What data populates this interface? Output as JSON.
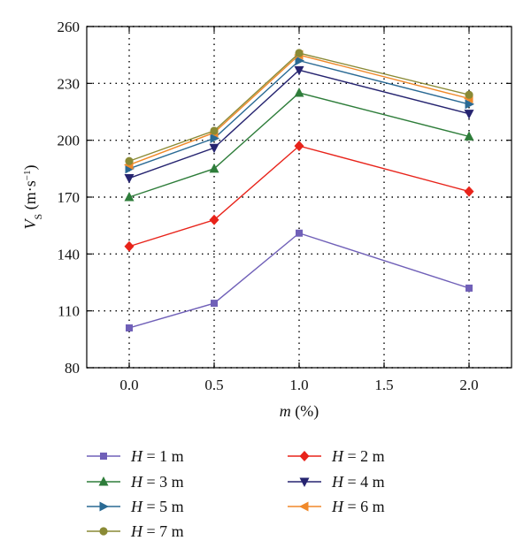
{
  "chart_data": {
    "type": "line",
    "xlabel": {
      "var": "m",
      "unit": " (%)"
    },
    "ylabel": {
      "var": "V",
      "sub": "S",
      "unit_pre": " (m·s",
      "sup": "−1",
      "unit_post": ")"
    },
    "xlim": [
      -0.25,
      2.25
    ],
    "ylim": [
      80,
      260
    ],
    "xticks": [
      0.0,
      0.5,
      1.0,
      1.5,
      2.0
    ],
    "xtick_labels": [
      "0.0",
      "0.5",
      "1.0",
      "1.5",
      "2.0"
    ],
    "yticks": [
      80,
      110,
      140,
      170,
      200,
      230,
      260
    ],
    "ytick_labels": [
      "80",
      "110",
      "140",
      "170",
      "200",
      "230",
      "260"
    ],
    "grid": "dotted",
    "legend_placement": "bottom",
    "x": [
      0.0,
      0.5,
      1.0,
      2.0
    ],
    "series": [
      {
        "name": "H = 1 m",
        "label_var": "H",
        "label_rest": " = 1 m",
        "color": "#7060b8",
        "marker": "square",
        "values": [
          101,
          114,
          151,
          122
        ]
      },
      {
        "name": "H = 2 m",
        "label_var": "H",
        "label_rest": " = 2 m",
        "color": "#e8231a",
        "marker": "diamond",
        "values": [
          144,
          158,
          197,
          173
        ]
      },
      {
        "name": "H = 3 m",
        "label_var": "H",
        "label_rest": " = 3 m",
        "color": "#2e7d3a",
        "marker": "triangle-up",
        "values": [
          170,
          185,
          225,
          202
        ]
      },
      {
        "name": "H = 4 m",
        "label_var": "H",
        "label_rest": " = 4 m",
        "color": "#262470",
        "marker": "triangle-down",
        "values": [
          180,
          196,
          237,
          214
        ]
      },
      {
        "name": "H = 5 m",
        "label_var": "H",
        "label_rest": " = 5 m",
        "color": "#2a6a94",
        "marker": "triangle-right",
        "values": [
          185,
          201,
          242,
          219
        ]
      },
      {
        "name": "H = 6 m",
        "label_var": "H",
        "label_rest": " = 6 m",
        "color": "#f0892a",
        "marker": "triangle-left",
        "values": [
          187,
          204,
          245,
          222
        ]
      },
      {
        "name": "H = 7 m",
        "label_var": "H",
        "label_rest": " = 7 m",
        "color": "#8a8a35",
        "marker": "circle",
        "values": [
          189,
          205,
          246,
          224
        ]
      }
    ]
  }
}
